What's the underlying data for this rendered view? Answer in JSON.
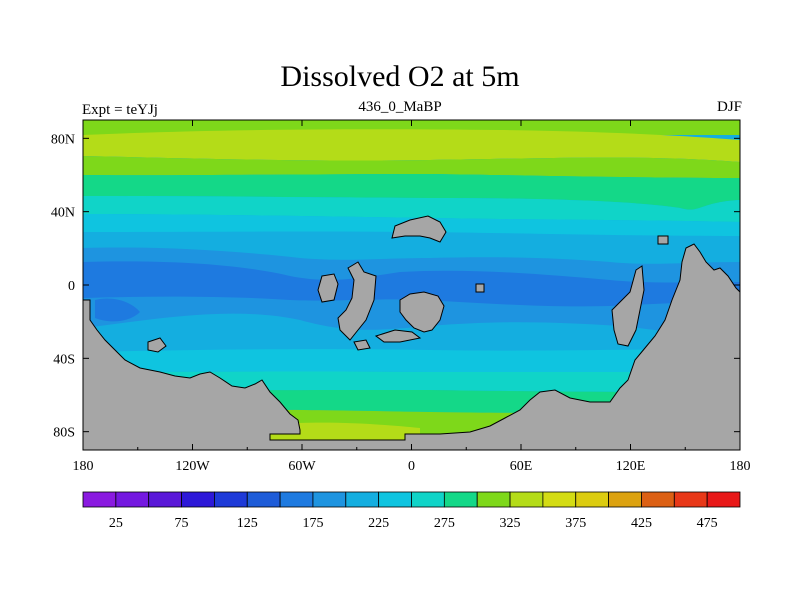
{
  "chart_data": {
    "type": "heatmap",
    "title": "Dissolved O2 at 5m",
    "left_label": "Expt = teYJj",
    "center_label": "436_0_MaBP",
    "right_label": "DJF",
    "x_ticks": [
      "180",
      "120W",
      "60W",
      "0",
      "60E",
      "120E",
      "180"
    ],
    "x_tick_values": [
      -180,
      -120,
      -60,
      0,
      60,
      120,
      180
    ],
    "y_ticks": [
      "80N",
      "40N",
      "0",
      "40S",
      "80S"
    ],
    "y_tick_values": [
      80,
      40,
      0,
      -40,
      -80
    ],
    "xlim": [
      -180,
      180
    ],
    "ylim": [
      -90,
      90
    ],
    "colorbar": {
      "levels": [
        0,
        25,
        50,
        75,
        100,
        125,
        150,
        175,
        200,
        225,
        250,
        275,
        300,
        325,
        350,
        375,
        400,
        425,
        450,
        475,
        500
      ],
      "tick_labels": [
        "25",
        "75",
        "125",
        "175",
        "225",
        "275",
        "325",
        "375",
        "425",
        "475"
      ],
      "tick_values": [
        25,
        75,
        125,
        175,
        225,
        275,
        325,
        375,
        425,
        475
      ],
      "colors": [
        "#8a1ae0",
        "#7418e0",
        "#5a18d8",
        "#2d18d8",
        "#1e3ad8",
        "#1e5cd8",
        "#1e7ae0",
        "#1e94e0",
        "#14aee0",
        "#0fc4e0",
        "#10d4c8",
        "#14d888",
        "#7ed81a",
        "#b4dc18",
        "#d4dc14",
        "#dccc10",
        "#dca210",
        "#dc6014",
        "#e83818",
        "#e81818"
      ]
    },
    "land_color": "#a6a6a6"
  }
}
